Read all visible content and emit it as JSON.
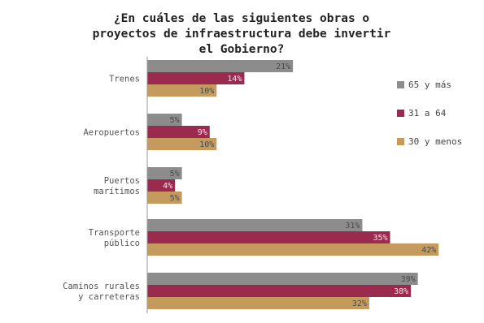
{
  "chart_data": {
    "type": "bar",
    "orientation": "horizontal",
    "title": [
      "¿En cuáles de las siguientes obras o",
      "proyectos de infraestructura debe invertir",
      "el Gobierno?"
    ],
    "categories": [
      [
        "Trenes"
      ],
      [
        "Aeropuertos"
      ],
      [
        "Puertos",
        "marítimos"
      ],
      [
        "Transporte",
        "público"
      ],
      [
        "Caminos rurales",
        "y carreteras"
      ]
    ],
    "series": [
      {
        "name": "65 y más",
        "color": "#8c8c8c",
        "values": [
          21,
          5,
          5,
          31,
          39
        ]
      },
      {
        "name": "31 a 64",
        "color": "#9b2a4f",
        "values": [
          14,
          9,
          4,
          35,
          38
        ]
      },
      {
        "name": "30 y menos",
        "color": "#c49a5d",
        "values": [
          10,
          10,
          5,
          42,
          32
        ]
      }
    ],
    "value_suffix": "%",
    "xlim": [
      0,
      45
    ],
    "grid": false,
    "legend_position": "right"
  }
}
